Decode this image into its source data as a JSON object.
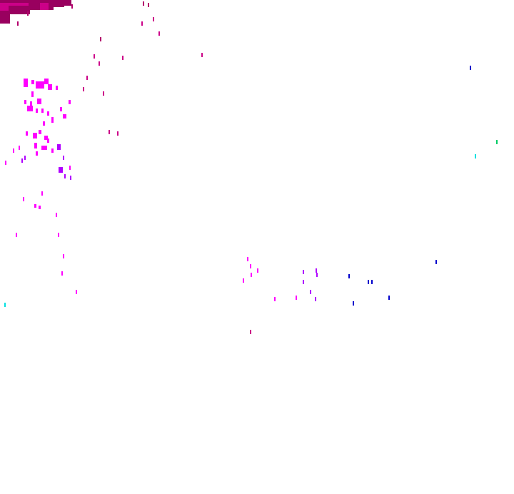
{
  "map": {
    "layer": "precipitation-overlay",
    "background": "#ffffff",
    "palette": {
      "deep_magenta": "#99005f",
      "dark_magenta": "#b3006b",
      "magenta": "#cc0088",
      "bright_magenta": "#ff00ff",
      "violet": "#b000ff",
      "purple": "#9a00ff",
      "blue": "#0000cc",
      "cyan": "#00e0e0",
      "green": "#00cc66"
    }
  }
}
